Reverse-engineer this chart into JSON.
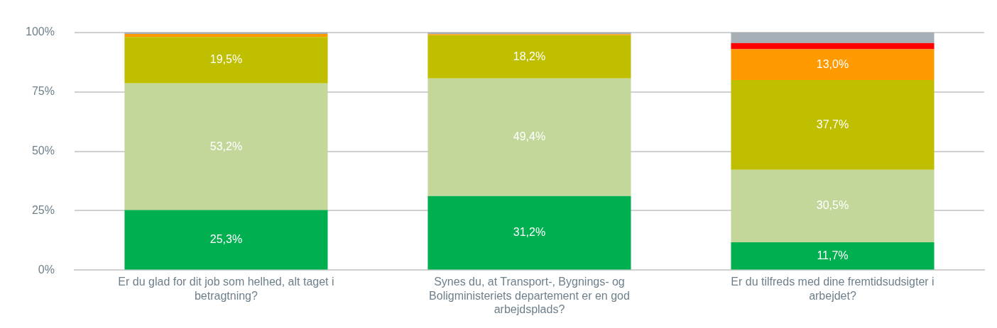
{
  "chart_data": {
    "type": "bar",
    "stacked": true,
    "categories": [
      "Er du glad for dit job som helhed, alt taget i betragtning?",
      "Synes du, at Transport-, Bygnings- og Boligministeriets departement er en god arbejdsplads?",
      "Er du tilfreds med dine fremtidsudsigter i arbejdet?"
    ],
    "series": [
      {
        "color": "#00b050",
        "values": [
          25.3,
          31.2,
          11.7
        ],
        "value_labels": [
          "25,3%",
          "31,2%",
          "11,7%"
        ]
      },
      {
        "color": "#c4d79b",
        "values": [
          53.2,
          49.4,
          30.5
        ],
        "value_labels": [
          "53,2%",
          "49,4%",
          "30,5%"
        ]
      },
      {
        "color": "#bfbf00",
        "values": [
          19.5,
          18.2,
          37.7
        ],
        "value_labels": [
          "19,5%",
          "18,2%",
          "37,7%"
        ]
      },
      {
        "color": "#ff9900",
        "values": [
          1.3,
          0.4,
          13.0
        ],
        "value_labels": [
          null,
          null,
          "13,0%"
        ]
      },
      {
        "color": "#ff0000",
        "values": [
          0,
          0,
          2.6
        ]
      },
      {
        "color": "#a6afb5",
        "values": [
          0.7,
          0.8,
          4.5
        ]
      }
    ],
    "ylim": [
      0,
      100
    ],
    "yticks": [
      {
        "value": 0,
        "label": "0%"
      },
      {
        "value": 25,
        "label": "25%"
      },
      {
        "value": 50,
        "label": "50%"
      },
      {
        "value": 75,
        "label": "75%"
      },
      {
        "value": 100,
        "label": "100%"
      }
    ],
    "grid": "y",
    "legend": false
  }
}
